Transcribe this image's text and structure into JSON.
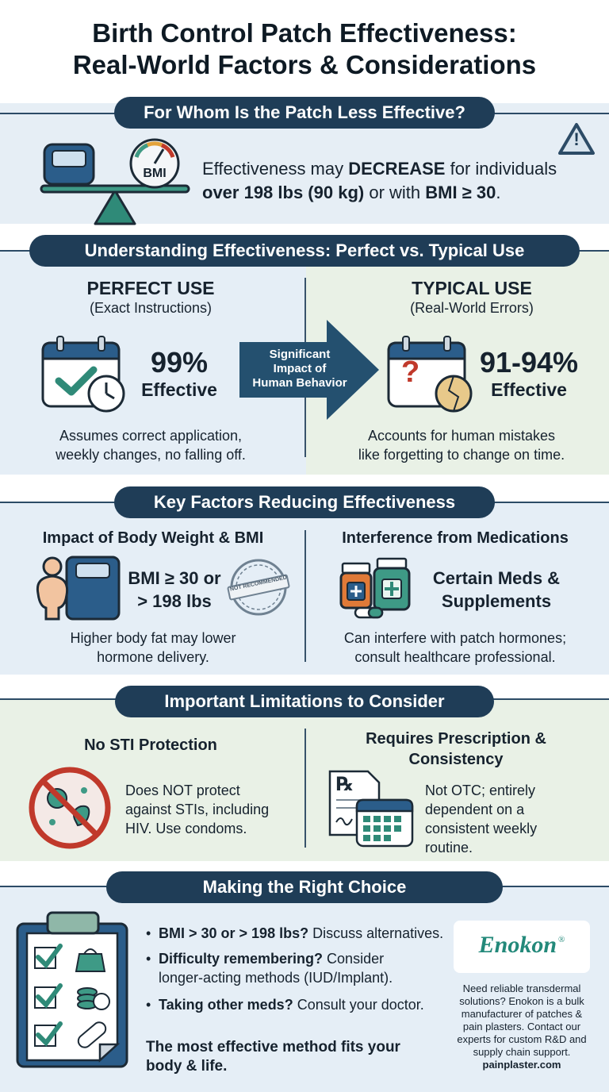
{
  "title": {
    "line1": "Birth Control Patch Effectiveness:",
    "line2": "Real-World Factors & Considerations"
  },
  "section1": {
    "header": "For Whom Is the Patch Less Effective?",
    "bmi_label": "BMI",
    "text_pre": "Effectiveness may ",
    "text_emph": "DECREASE",
    "text_post": " for individuals",
    "line2_bold1": "over 198 lbs (90 kg)",
    "line2_mid": " or with ",
    "line2_bold2": "BMI ≥ 30",
    "line2_end": ".",
    "warning_symbol": "!"
  },
  "section2": {
    "header": "Understanding Effectiveness: Perfect vs. Typical Use",
    "perfect": {
      "title": "PERFECT USE",
      "subtitle": "(Exact Instructions)",
      "percent": "99%",
      "effective": "Effective",
      "desc1": "Assumes correct application,",
      "desc2": "weekly changes, no falling off."
    },
    "arrow": {
      "line1": "Significant",
      "line2": "Impact of",
      "line3": "Human Behavior"
    },
    "typical": {
      "title": "TYPICAL USE",
      "subtitle": "(Real-World Errors)",
      "percent": "91-94%",
      "effective": "Effective",
      "desc1": "Accounts for human mistakes",
      "desc2": "like forgetting to change on time.",
      "question_mark": "?"
    }
  },
  "section3": {
    "header": "Key Factors Reducing Effectiveness",
    "weight": {
      "title": "Impact of Body Weight & BMI",
      "line1": "BMI ≥ 30 or",
      "line2": "> 198 lbs",
      "stamp": "NOT RECOMMENDED",
      "desc1": "Higher body fat may lower",
      "desc2": "hormone delivery."
    },
    "meds": {
      "title": "Interference from Medications",
      "line1": "Certain Meds &",
      "line2": "Supplements",
      "desc1": "Can interfere with patch hormones;",
      "desc2": "consult healthcare professional."
    }
  },
  "section4": {
    "header": "Important Limitations to Consider",
    "sti": {
      "title": "No STI Protection",
      "line1": "Does NOT protect",
      "line2": "against STIs, including",
      "line3": "HIV. Use condoms."
    },
    "rx": {
      "title1": "Requires Prescription &",
      "title2": "Consistency",
      "rx_symbol": "℞",
      "line1": "Not OTC; entirely",
      "line2": "dependent on a",
      "line3": "consistent weekly",
      "line4": "routine."
    }
  },
  "section5": {
    "header": "Making the Right Choice",
    "bullets": [
      {
        "bold": "BMI > 30 or > 198 lbs?",
        "rest": " Discuss alternatives."
      },
      {
        "bold": "Difficulty remembering?",
        "rest": " Consider",
        "line2": "longer-acting methods (IUD/Implant)."
      },
      {
        "bold": "Taking other meds?",
        "rest": " Consult your doctor."
      }
    ],
    "tagline1": "The most effective method fits your",
    "tagline2": "body & life.",
    "brand": "Enokon",
    "brand_mark": "®",
    "promo": [
      "Need reliable transdermal",
      "solutions? Enokon is a bulk",
      "manufacturer of patches &",
      "pain plasters. Contact our",
      "experts for custom R&D and",
      "supply chain support."
    ],
    "website": "painplaster.com"
  },
  "colors": {
    "navy": "#1f3d57",
    "teal": "#2f8a78",
    "panel_blue": "#e5eef6",
    "panel_green": "#e9f1e6",
    "warning_red": "#c0392b"
  }
}
